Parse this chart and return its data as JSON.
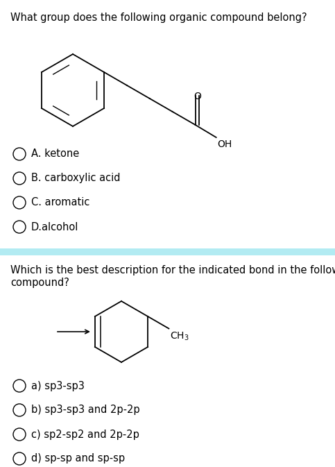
{
  "bg_color": "#ffffff",
  "divider_color": "#b2ebf2",
  "text_color": "#000000",
  "q1_text": "What group does the following organic compound belong?",
  "q2_text_line1": "Which is the best description for the indicated bond in the following",
  "q2_text_line2": "compound?",
  "q1_options": [
    "A. ketone",
    "B. carboxylic acid",
    "C. aromatic",
    "D.alcohol"
  ],
  "q2_options": [
    "a) sp3-sp3",
    "b) sp3-sp3 and 2p-2p",
    "c) sp2-sp2 and 2p-2p",
    "d) sp-sp and sp-sp"
  ],
  "font_size_q": 10.5,
  "font_size_opt": 10.5,
  "fig_width": 4.83,
  "fig_height": 6.73,
  "dpi": 100
}
